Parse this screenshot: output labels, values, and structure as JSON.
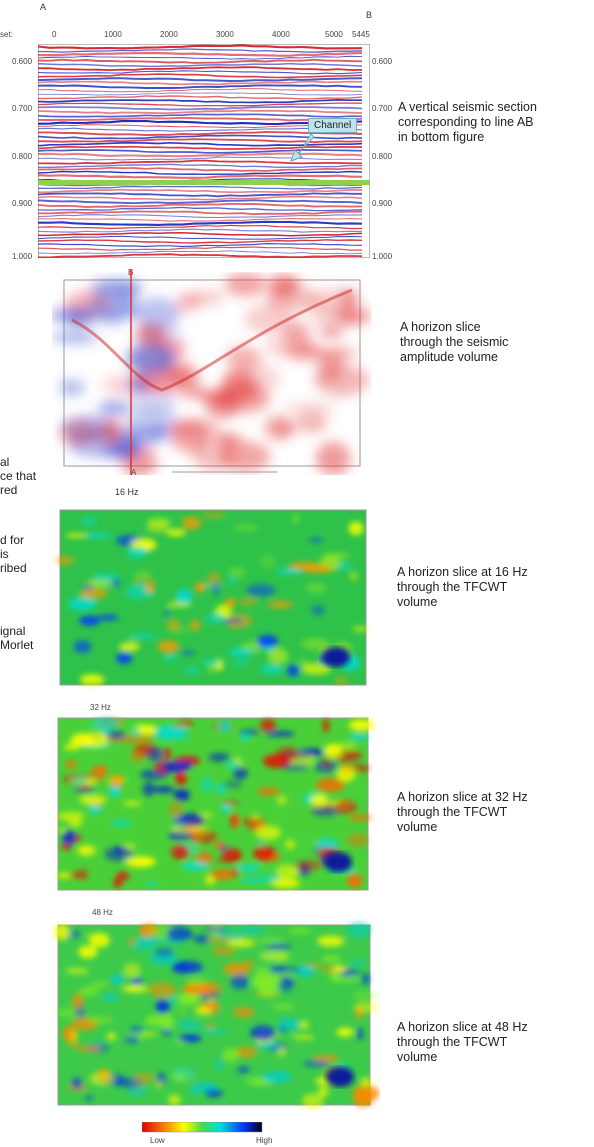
{
  "section": {
    "label_a": "A",
    "label_b": "B",
    "offset_label": "set:",
    "x_ticks": [
      "0",
      "1000",
      "2000",
      "3000",
      "4000",
      "5000",
      "5445"
    ],
    "time_ticks": [
      "0.600",
      "0.700",
      "0.800",
      "0.900",
      "1.000"
    ],
    "callout": "Channel",
    "caption": [
      "A vertical seismic section",
      "corresponding to line AB",
      "in bottom figure"
    ]
  },
  "amplitude_slice": {
    "label_a": "A",
    "label_b": "B",
    "caption": [
      "A horizon slice",
      "through the seismic",
      "amplitude volume"
    ]
  },
  "frequency_slices": [
    {
      "label": "16 Hz",
      "caption": [
        "A horizon slice at 16 Hz",
        "through the TFCWT",
        "volume"
      ]
    },
    {
      "label": "32 Hz",
      "caption": [
        "A horizon slice at 32 Hz",
        "through the TFCWT",
        "volume"
      ]
    },
    {
      "label": "48 Hz",
      "caption": [
        "A horizon slice at 48 Hz",
        "through the TFCWT",
        "volume"
      ]
    }
  ],
  "left_fragments": [
    [
      "al",
      "ce that",
      "red"
    ],
    [
      "d for",
      "is",
      "ribed"
    ],
    [
      "ignal",
      "Morlet"
    ]
  ],
  "colorbar": {
    "low": "Low",
    "high": "High"
  }
}
